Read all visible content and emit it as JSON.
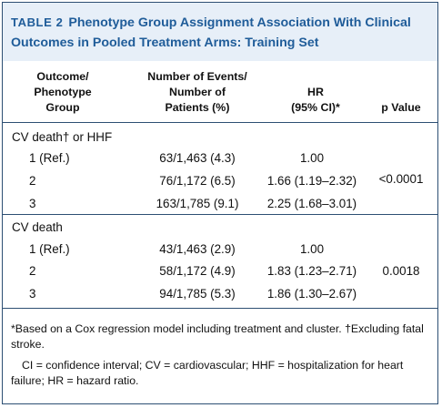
{
  "table": {
    "label": "TABLE 2",
    "title": "Phenotype Group Assignment Association With Clinical Outcomes in Pooled Treatment Arms: Training Set",
    "headers": {
      "outcome": [
        "Outcome/",
        "Phenotype",
        "Group"
      ],
      "events": [
        "Number of Events/",
        "Number of",
        "Patients (%)"
      ],
      "hr": [
        "HR",
        "(95% CI)*"
      ],
      "pvalue": "p Value"
    },
    "sections": [
      {
        "label": "CV death† or HHF",
        "pvalue": "<0.0001",
        "rows": [
          {
            "group": "1 (Ref.)",
            "events": "63/1,463 (4.3)",
            "hr": "1.00"
          },
          {
            "group": "2",
            "events": "76/1,172 (6.5)",
            "hr": "1.66 (1.19–2.32)"
          },
          {
            "group": "3",
            "events": "163/1,785 (9.1)",
            "hr": "2.25 (1.68–3.01)"
          }
        ]
      },
      {
        "label": "CV death",
        "pvalue": "0.0018",
        "rows": [
          {
            "group": "1 (Ref.)",
            "events": "43/1,463 (2.9)",
            "hr": "1.00"
          },
          {
            "group": "2",
            "events": "58/1,172 (4.9)",
            "hr": "1.83 (1.23–2.71)"
          },
          {
            "group": "3",
            "events": "94/1,785 (5.3)",
            "hr": "1.86 (1.30–2.67)"
          }
        ]
      }
    ],
    "footnotes": [
      "*Based on a Cox regression model including treatment and cluster. †Excluding fatal stroke.",
      "CI = confidence interval; CV = cardiovascular; HHF = hospitalization for heart failure; HR = hazard ratio."
    ]
  },
  "colors": {
    "accent": "#1f5c99",
    "band": "#e7eff8",
    "border": "#2d4f73"
  }
}
